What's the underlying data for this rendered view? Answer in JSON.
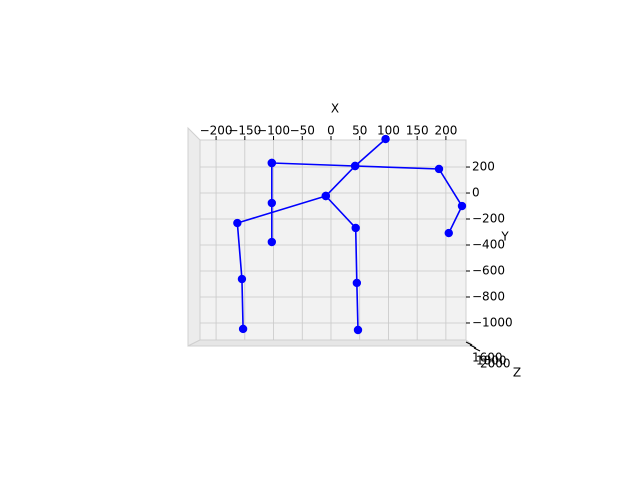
{
  "chart_data": {
    "type": "line3d",
    "xlabel": "X",
    "ylabel": "Y",
    "zlabel": "Z",
    "color": "#0000ff",
    "xlim": [
      -228,
      235
    ],
    "ylim": [
      -1131,
      408
    ],
    "xticks": [
      {
        "value": -200,
        "label": "−200"
      },
      {
        "value": -150,
        "label": "−150"
      },
      {
        "value": -100,
        "label": "−100"
      },
      {
        "value": -50,
        "label": "−50"
      },
      0,
      50,
      100,
      150,
      200
    ],
    "yticks": [
      200,
      0,
      {
        "value": -200,
        "label": "−200"
      },
      {
        "value": -400,
        "label": "−400"
      },
      {
        "value": -600,
        "label": "−600"
      },
      {
        "value": -800,
        "label": "−800"
      },
      {
        "value": -1000,
        "label": "−1000"
      }
    ],
    "zticks": [
      1600,
      1800,
      2000
    ],
    "grid": true,
    "series": [
      {
        "x": [
          95,
          42,
          -9
        ],
        "y": [
          415,
          208,
          -23
        ]
      },
      {
        "x": [
          -103,
          42,
          188,
          228,
          205
        ],
        "y": [
          231,
          208,
          185,
          -100,
          -308
        ]
      },
      {
        "x": [
          -103,
          -103,
          -103
        ],
        "y": [
          231,
          -77,
          -377
        ]
      },
      {
        "x": [
          -153,
          -155,
          -163,
          -9,
          43,
          45,
          47
        ],
        "y": [
          -1046,
          -662,
          -231,
          -23,
          -269,
          -692,
          -1054
        ]
      }
    ]
  }
}
